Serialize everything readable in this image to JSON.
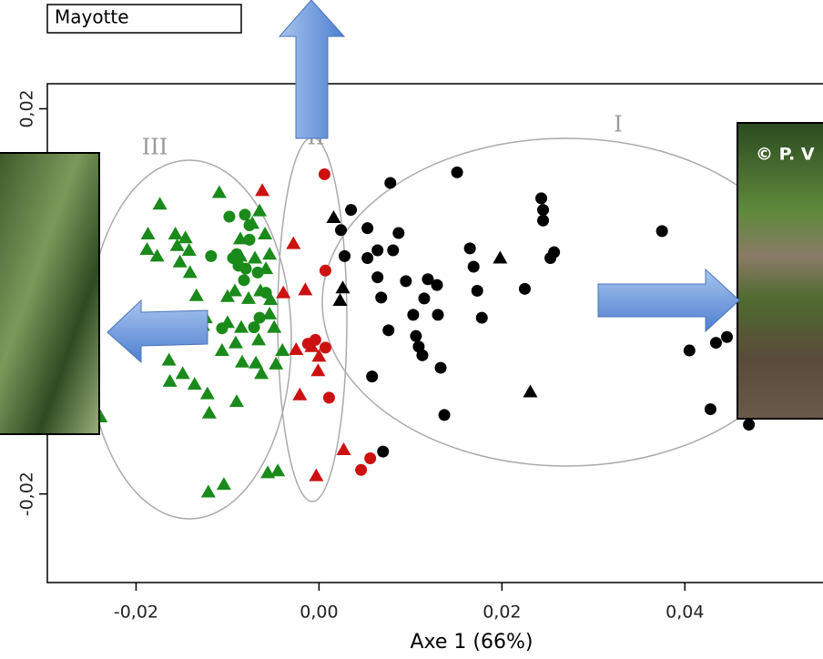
{
  "chart_data": {
    "type": "scatter",
    "title": "Mayotte",
    "xlabel": "Axe 1 (66%)",
    "annotations": [
      "I",
      "II",
      "III",
      "© P. V"
    ],
    "xlim": [
      -0.0297,
      0.0551
    ],
    "ylim": [
      -0.0292,
      0.0226
    ],
    "xticks": [
      {
        "value": -0.02,
        "label": "-0,02"
      },
      {
        "value": 0,
        "label": "0,00"
      },
      {
        "value": 0.02,
        "label": "0,02"
      },
      {
        "value": 0.04,
        "label": "0,04"
      }
    ],
    "yticks": [
      {
        "value": -0.02,
        "label": "-0,02"
      },
      {
        "value": 0.02,
        "label": "0,02"
      }
    ],
    "series": [
      {
        "color": "#000000",
        "marker": "circle",
        "x": [
          0.0151,
          0.0078,
          0.0035,
          0.0053,
          0.0087,
          0.0024,
          0.0028,
          0.0064,
          0.0053,
          0.0081,
          0.0243,
          0.0245,
          0.0245,
          0.0165,
          0.0169,
          0.0257,
          0.0253,
          0.0375,
          0.0064,
          0.0095,
          0.0119,
          0.0129,
          0.0115,
          0.0173,
          0.0225,
          0.0068,
          0.0103,
          0.013,
          0.0076,
          0.0106,
          0.0109,
          0.0113,
          0.0178,
          0.0133,
          0.0058,
          0.0137,
          0.007,
          0.0405,
          0.0434,
          0.0446,
          0.0428,
          0.047
        ],
        "values": [
          0.0134,
          0.0123,
          0.0095,
          0.0076,
          0.0071,
          0.0074,
          0.0047,
          0.0053,
          0.0045,
          0.0053,
          0.0107,
          0.0095,
          0.0084,
          0.0055,
          0.0036,
          0.0051,
          0.0045,
          0.0073,
          0.0025,
          0.0021,
          0.0023,
          0.0017,
          0.0003,
          0.0011,
          0.0013,
          0.0004,
          -0.0014,
          -0.0014,
          -0.003,
          -0.0036,
          -0.0047,
          -0.0056,
          -0.0017,
          -0.0069,
          -0.0078,
          -0.0118,
          -0.0156,
          -0.0051,
          -0.0043,
          -0.0037,
          -0.0112,
          -0.0128
        ]
      },
      {
        "color": "#000000",
        "marker": "triangle",
        "x": [
          0.0016,
          0.0198,
          0.0026,
          0.0023,
          0.0231
        ],
        "values": [
          0.0087,
          0.0045,
          0.0014,
          0.0001,
          -0.0094
        ]
      },
      {
        "color": "#cc1111",
        "marker": "circle",
        "x": [
          0.0006,
          0.0007,
          -0.0012,
          -0.0004,
          0.0007,
          0.0011,
          0.0056,
          0.0046
        ],
        "values": [
          0.0132,
          0.0032,
          -0.0044,
          -0.004,
          -0.0048,
          -0.01,
          -0.0163,
          -0.0175
        ]
      },
      {
        "color": "#cc1111",
        "marker": "triangle",
        "x": [
          -0.0062,
          -0.0028,
          -0.0039,
          -0.0015,
          -0.0025,
          -0.0008,
          0,
          -0.0001,
          -0.0021,
          0.0027,
          -0.0003
        ],
        "values": [
          0.0115,
          0.006,
          0.0009,
          0.0012,
          -0.005,
          -0.0047,
          -0.0057,
          -0.0072,
          -0.0097,
          -0.0154,
          -0.0181
        ]
      },
      {
        "color": "#1a8a1a",
        "marker": "circle",
        "x": [
          -0.0098,
          -0.0081,
          -0.0076,
          -0.0076,
          -0.0118,
          -0.009,
          -0.0088,
          -0.008,
          -0.0067,
          -0.0058,
          -0.0082,
          -0.0065,
          -0.0106,
          -0.0071,
          -0.0094
        ],
        "values": [
          0.0088,
          0.009,
          0.0079,
          0.0064,
          0.0047,
          0.0049,
          0.0037,
          0.0034,
          0.003,
          0.0009,
          0.0022,
          -0.0017,
          -0.0028,
          -0.0027,
          0.0045
        ]
      },
      {
        "color": "#1a8a1a",
        "marker": "triangle",
        "x": [
          -0.0174,
          -0.0109,
          -0.0065,
          -0.0073,
          -0.0187,
          -0.0157,
          -0.0146,
          -0.0155,
          -0.0142,
          -0.0086,
          -0.0059,
          -0.0086,
          -0.0141,
          -0.0188,
          -0.0177,
          -0.0152,
          -0.007,
          -0.0054,
          -0.0058,
          -0.0134,
          -0.01,
          -0.0092,
          -0.0077,
          -0.0064,
          -0.0053,
          -0.0054,
          -0.01,
          -0.0085,
          -0.0049,
          -0.0127,
          -0.0164,
          -0.0124,
          -0.0106,
          -0.0091,
          -0.0066,
          -0.0084,
          -0.0069,
          -0.0047,
          -0.0063,
          -0.0149,
          -0.0163,
          -0.0136,
          -0.0122,
          -0.004,
          -0.009,
          -0.012,
          -0.0164,
          -0.0056,
          -0.0045,
          -0.0104,
          -0.0121,
          -0.0239
        ],
        "values": [
          0.0101,
          0.0113,
          0.0094,
          0.0081,
          0.007,
          0.007,
          0.0066,
          0.0058,
          0.0053,
          0.0065,
          0.007,
          0.0047,
          0.003,
          0.0054,
          0.0047,
          0.0041,
          0.0045,
          0.0049,
          0.0034,
          0.0006,
          0.0005,
          0.0011,
          0.0003,
          0.0011,
          0.0002,
          -0.0013,
          -0.0022,
          -0.0027,
          -0.0027,
          -0.0025,
          -0.0035,
          -0.0017,
          -0.0051,
          -0.0043,
          -0.004,
          -0.0063,
          -0.0064,
          -0.0065,
          -0.0075,
          -0.0075,
          -0.0083,
          -0.0086,
          -0.0096,
          -0.0051,
          -0.0104,
          -0.0116,
          -0.0061,
          -0.0178,
          -0.0176,
          -0.019,
          -0.0198,
          -0.012
        ]
      }
    ]
  }
}
